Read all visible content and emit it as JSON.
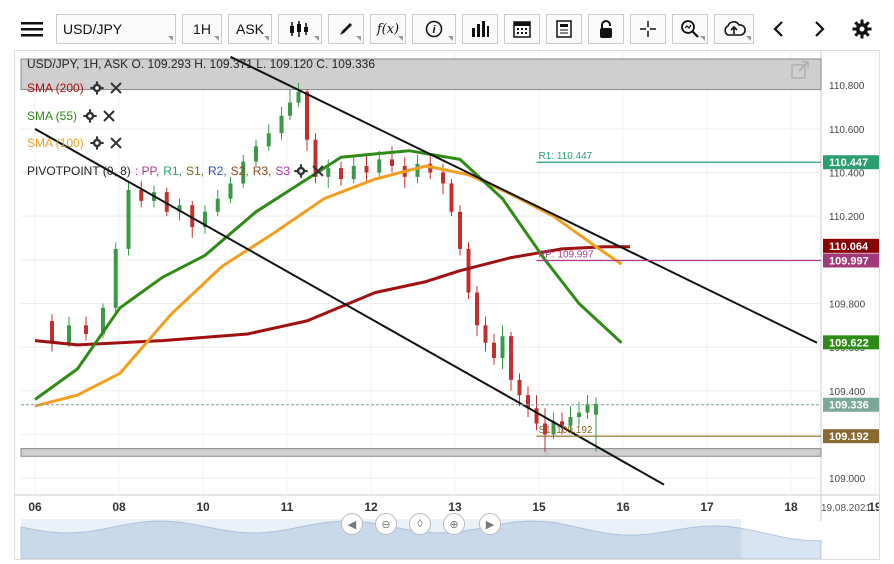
{
  "toolbar": {
    "symbol": "USD/JPY",
    "interval": "1H",
    "price_type": "ASK",
    "fx_label": "f(x)",
    "icons": [
      "menu-icon",
      "candlestick-icon",
      "pencil-icon",
      "function-icon",
      "info-icon",
      "volume-bars-icon",
      "calendar-icon",
      "news-icon",
      "lock-icon",
      "crosshair-icon",
      "zoom-icon",
      "cloud-upload-icon",
      "chevron-left-icon",
      "chevron-right-icon",
      "gear-icon"
    ]
  },
  "ohlc": "USD/JPY, 1H, ASK    O. 109.293 H. 109.371 L. 109.120 C. 109.336",
  "legend": {
    "sma200": {
      "label": "SMA (200)",
      "color": "#a01010"
    },
    "sma55": {
      "label": "SMA (55)",
      "color": "#2e8b16"
    },
    "sma100": {
      "label": "SMA (100)",
      "color": "#f0a020"
    },
    "pivot": {
      "label": "PIVOTPOINT (0, 8)",
      "items": [
        {
          "text": ": PP,",
          "color": "#b03a8a"
        },
        {
          "text": "R1,",
          "color": "#2aa070"
        },
        {
          "text": "S1,",
          "color": "#7a6a20"
        },
        {
          "text": "R2,",
          "color": "#3050b0"
        },
        {
          "text": "S2,",
          "color": "#8a4a20"
        },
        {
          "text": "R3,",
          "color": "#8a4a20"
        },
        {
          "text": "S3",
          "color": "#b030b0"
        }
      ]
    }
  },
  "date_footer": "19.08.2021",
  "chart_data": {
    "type": "line",
    "x_ticks": [
      "06",
      "08",
      "10",
      "11",
      "12",
      "13",
      "15",
      "16",
      "17",
      "18",
      "19"
    ],
    "ylim": [
      108.95,
      110.92
    ],
    "y_ticks": [
      "110.800",
      "110.600",
      "110.400",
      "110.200",
      "110.000",
      "109.800",
      "109.600",
      "109.400",
      "109.200",
      "109.000"
    ],
    "levels": {
      "r1": {
        "label": "R1: 110.447",
        "value": 110.447,
        "color": "#2aa070"
      },
      "pp": {
        "label": "PP: 109.997",
        "value": 109.997,
        "color": "#b03a8a"
      },
      "s1": {
        "label": "S1: 109.192",
        "value": 109.192,
        "color": "#8a6a20"
      }
    },
    "price_tags": [
      {
        "text": "110.447",
        "value": 110.447,
        "bg": "#2aa070"
      },
      {
        "text": "110.064",
        "value": 110.064,
        "bg": "#8a0000"
      },
      {
        "text": "109.997",
        "value": 109.997,
        "bg": "#a03a7a"
      },
      {
        "text": "109.622",
        "value": 109.622,
        "bg": "#2e8b16"
      },
      {
        "text": "109.336",
        "value": 109.336,
        "bg": "#7aa89a"
      },
      {
        "text": "109.192",
        "value": 109.192,
        "bg": "#8a6a30"
      }
    ],
    "sma200": [
      [
        0,
        109.63
      ],
      [
        0.5,
        109.61
      ],
      [
        1.5,
        109.63
      ],
      [
        2.5,
        109.66
      ],
      [
        3.2,
        109.72
      ],
      [
        4,
        109.85
      ],
      [
        4.6,
        109.9
      ],
      [
        5,
        109.95
      ],
      [
        5.6,
        110.01
      ],
      [
        6.2,
        110.05
      ],
      [
        6.7,
        110.06
      ],
      [
        7,
        110.06
      ]
    ],
    "sma55": [
      [
        0,
        109.36
      ],
      [
        0.5,
        109.5
      ],
      [
        1,
        109.78
      ],
      [
        1.5,
        109.92
      ],
      [
        2,
        110.02
      ],
      [
        2.6,
        110.22
      ],
      [
        3.2,
        110.37
      ],
      [
        3.6,
        110.47
      ],
      [
        4.4,
        110.5
      ],
      [
        5,
        110.46
      ],
      [
        5.5,
        110.28
      ],
      [
        6,
        110.0
      ],
      [
        6.4,
        109.8
      ],
      [
        6.9,
        109.62
      ]
    ],
    "sma100": [
      [
        0,
        109.33
      ],
      [
        0.5,
        109.38
      ],
      [
        1,
        109.48
      ],
      [
        1.6,
        109.75
      ],
      [
        2.2,
        109.97
      ],
      [
        2.8,
        110.12
      ],
      [
        3.4,
        110.28
      ],
      [
        4,
        110.37
      ],
      [
        4.6,
        110.43
      ],
      [
        5.1,
        110.39
      ],
      [
        5.6,
        110.3
      ],
      [
        6.1,
        110.2
      ],
      [
        6.6,
        110.06
      ],
      [
        6.9,
        109.98
      ]
    ],
    "trendlines": [
      {
        "x1": 2.3,
        "y1": 110.93,
        "x2": 9.2,
        "y2": 109.62
      },
      {
        "x1": 0.0,
        "y1": 110.6,
        "x2": 7.4,
        "y2": 108.97
      }
    ],
    "candles": [
      [
        0.2,
        109.72,
        109.62,
        109.75,
        109.58
      ],
      [
        0.4,
        109.62,
        109.7,
        109.74,
        109.6
      ],
      [
        0.6,
        109.7,
        109.66,
        109.74,
        109.63
      ],
      [
        0.8,
        109.66,
        109.78,
        109.8,
        109.64
      ],
      [
        0.95,
        109.78,
        110.05,
        110.08,
        109.76
      ],
      [
        1.1,
        110.05,
        110.32,
        110.36,
        110.02
      ],
      [
        1.25,
        110.32,
        110.27,
        110.36,
        110.24
      ],
      [
        1.4,
        110.27,
        110.31,
        110.34,
        110.24
      ],
      [
        1.55,
        110.31,
        110.22,
        110.33,
        110.2
      ],
      [
        1.7,
        110.22,
        110.25,
        110.28,
        110.18
      ],
      [
        1.85,
        110.25,
        110.15,
        110.27,
        110.1
      ],
      [
        2.0,
        110.15,
        110.22,
        110.25,
        110.12
      ],
      [
        2.15,
        110.22,
        110.28,
        110.32,
        110.2
      ],
      [
        2.3,
        110.28,
        110.35,
        110.38,
        110.26
      ],
      [
        2.45,
        110.35,
        110.45,
        110.48,
        110.33
      ],
      [
        2.6,
        110.45,
        110.52,
        110.55,
        110.43
      ],
      [
        2.75,
        110.52,
        110.58,
        110.62,
        110.5
      ],
      [
        2.9,
        110.58,
        110.66,
        110.7,
        110.55
      ],
      [
        3.0,
        110.66,
        110.72,
        110.78,
        110.64
      ],
      [
        3.1,
        110.72,
        110.77,
        110.81,
        110.7
      ],
      [
        3.2,
        110.77,
        110.55,
        110.78,
        110.5
      ],
      [
        3.3,
        110.55,
        110.38,
        110.58,
        110.35
      ],
      [
        3.45,
        110.38,
        110.42,
        110.46,
        110.33
      ],
      [
        3.6,
        110.42,
        110.37,
        110.45,
        110.34
      ],
      [
        3.75,
        110.37,
        110.43,
        110.47,
        110.35
      ],
      [
        3.9,
        110.43,
        110.4,
        110.48,
        110.36
      ],
      [
        4.05,
        110.4,
        110.46,
        110.5,
        110.37
      ],
      [
        4.2,
        110.46,
        110.43,
        110.52,
        110.4
      ],
      [
        4.35,
        110.43,
        110.38,
        110.47,
        110.33
      ],
      [
        4.5,
        110.38,
        110.44,
        110.48,
        110.35
      ],
      [
        4.65,
        110.44,
        110.4,
        110.48,
        110.37
      ],
      [
        4.8,
        110.4,
        110.35,
        110.44,
        110.3
      ],
      [
        4.9,
        110.35,
        110.22,
        110.37,
        110.2
      ],
      [
        5.0,
        110.22,
        110.05,
        110.25,
        110.02
      ],
      [
        5.1,
        110.05,
        109.85,
        110.08,
        109.82
      ],
      [
        5.2,
        109.85,
        109.7,
        109.88,
        109.65
      ],
      [
        5.3,
        109.7,
        109.62,
        109.74,
        109.58
      ],
      [
        5.4,
        109.62,
        109.55,
        109.66,
        109.52
      ],
      [
        5.5,
        109.55,
        109.65,
        109.7,
        109.5
      ],
      [
        5.6,
        109.65,
        109.45,
        109.67,
        109.4
      ],
      [
        5.7,
        109.45,
        109.38,
        109.48,
        109.33
      ],
      [
        5.8,
        109.38,
        109.32,
        109.42,
        109.28
      ],
      [
        5.9,
        109.32,
        109.25,
        109.38,
        109.22
      ],
      [
        6.0,
        109.25,
        109.2,
        109.32,
        109.12
      ],
      [
        6.1,
        109.2,
        109.26,
        109.3,
        109.18
      ],
      [
        6.2,
        109.26,
        109.24,
        109.3,
        109.2
      ],
      [
        6.3,
        109.24,
        109.28,
        109.33,
        109.22
      ],
      [
        6.4,
        109.28,
        109.3,
        109.35,
        109.24
      ],
      [
        6.5,
        109.3,
        109.34,
        109.38,
        109.27
      ],
      [
        6.6,
        109.29,
        109.34,
        109.37,
        109.12
      ]
    ]
  }
}
